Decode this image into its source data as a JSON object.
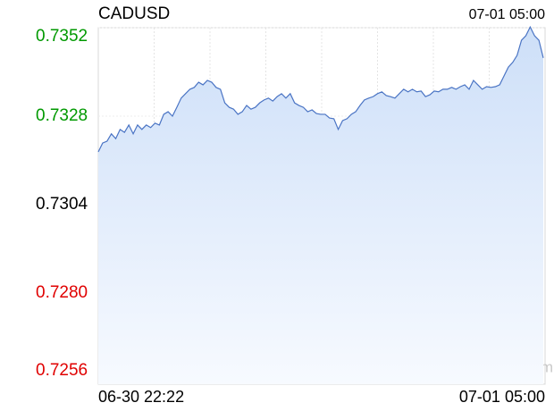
{
  "chart_data": {
    "type": "line",
    "title": "CADUSD",
    "timestamp": "07-01 05:00",
    "watermark": "sina.com",
    "xlabels": [
      "06-30 22:22",
      "07-01 05:00"
    ],
    "ylim": [
      0.7256,
      0.7352
    ],
    "yticks": [
      0.7352,
      0.7328,
      0.7304,
      0.728,
      0.7256
    ],
    "ytick_labels": [
      "0.7352",
      "0.7328",
      "0.7304",
      "0.7280",
      "0.7256"
    ],
    "prev_close": 0.7304,
    "up_color": "#009900",
    "down_color": "#e00000",
    "flat_color": "#000000",
    "grid": true,
    "series": [
      {
        "name": "CADUSD",
        "color": "#4a74c4",
        "values": [
          0.73183,
          0.73207,
          0.73212,
          0.73232,
          0.73219,
          0.73244,
          0.73236,
          0.73256,
          0.73232,
          0.73256,
          0.73244,
          0.73256,
          0.73249,
          0.73261,
          0.73256,
          0.73285,
          0.73292,
          0.7328,
          0.73304,
          0.73329,
          0.73341,
          0.73353,
          0.73358,
          0.73372,
          0.73365,
          0.73377,
          0.73372,
          0.73358,
          0.73353,
          0.73316,
          0.73304,
          0.73299,
          0.73285,
          0.73292,
          0.73309,
          0.73299,
          0.73304,
          0.73316,
          0.73324,
          0.73329,
          0.73321,
          0.73333,
          0.73341,
          0.73329,
          0.73341,
          0.73316,
          0.73309,
          0.73304,
          0.73292,
          0.73297,
          0.73287,
          0.73285,
          0.73285,
          0.73275,
          0.73273,
          0.73244,
          0.73268,
          0.73273,
          0.73285,
          0.73292,
          0.73309,
          0.73324,
          0.73329,
          0.73333,
          0.73341,
          0.73346,
          0.73336,
          0.73333,
          0.73329,
          0.73341,
          0.73353,
          0.73346,
          0.73353,
          0.73346,
          0.73348,
          0.73333,
          0.73338,
          0.73348,
          0.73346,
          0.73353,
          0.73353,
          0.73358,
          0.73353,
          0.7336,
          0.73365,
          0.73353,
          0.73377,
          0.73365,
          0.73353,
          0.7336,
          0.73358,
          0.7336,
          0.73365,
          0.73389,
          0.73413,
          0.73426,
          0.73445,
          0.73486,
          0.73498,
          0.73522,
          0.73498,
          0.73486,
          0.73438
        ]
      }
    ]
  }
}
